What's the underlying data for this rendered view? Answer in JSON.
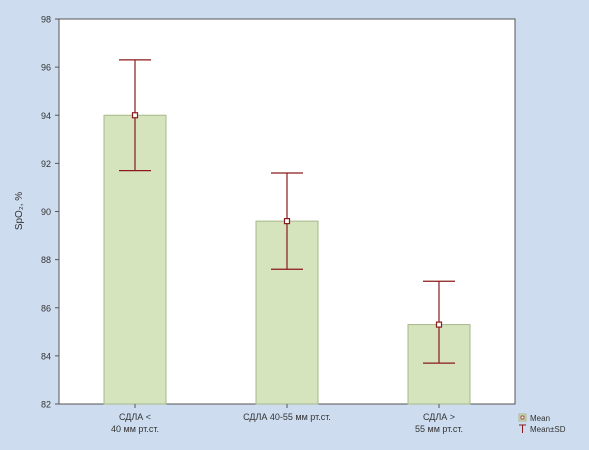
{
  "chart_data": {
    "type": "bar",
    "ylabel": "SpO₂, %",
    "ylim": [
      82,
      98
    ],
    "yticks": [
      82,
      84,
      86,
      88,
      90,
      92,
      94,
      96,
      98
    ],
    "ytick_labels": [
      "82",
      "84",
      "86",
      "88",
      "90",
      "92",
      "94",
      "96",
      "98"
    ],
    "categories": [
      [
        "СДЛА <",
        "40 мм рт.ст."
      ],
      [
        "СДЛА 40-55 мм рт.ст."
      ],
      [
        "СДЛА >",
        "55 мм рт.ст."
      ]
    ],
    "series": [
      {
        "values": [
          94.0,
          89.6,
          85.3
        ],
        "sd_upper": [
          96.3,
          91.6,
          87.1
        ],
        "sd_lower": [
          91.7,
          87.6,
          83.7
        ]
      }
    ],
    "legend": {
      "position": "bottom-right",
      "entries": [
        {
          "label": "Mean",
          "marker": "box"
        },
        {
          "label": "Mean±SD",
          "marker": "whisker"
        }
      ]
    },
    "grid": false
  },
  "colors": {
    "background": "#cddcef",
    "plot_area": "#ffffff",
    "bar_fill": "#d6e4bd",
    "bar_stroke": "#a6b88a",
    "whisker": "#8b1a1a",
    "axis": "#555555"
  }
}
